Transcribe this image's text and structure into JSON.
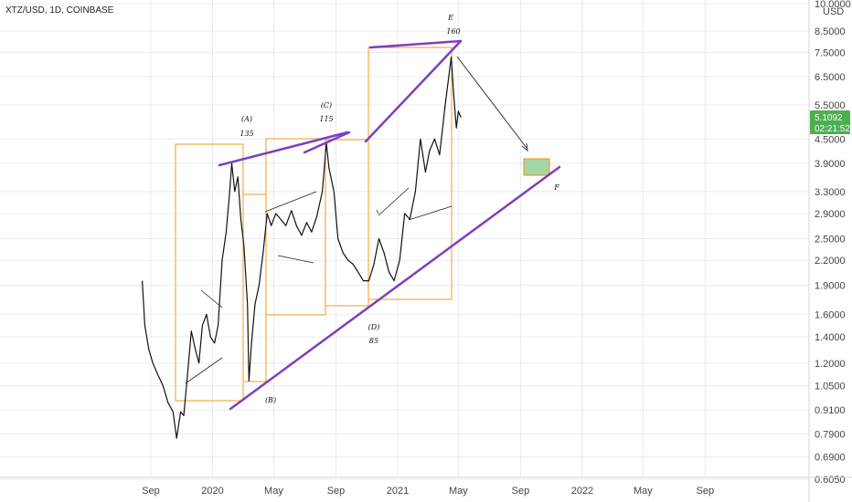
{
  "header": {
    "symbol": "XTZ/USD, 1D, COINBASE"
  },
  "price_badge": {
    "price": "5.1092",
    "countdown": "02:21:52",
    "color": "#4caf50"
  },
  "colors": {
    "candle": "#111111",
    "channel": "#7e3fbf",
    "box": "#f59a23",
    "target_fill": "#a5d6a7",
    "grid": "#e9ecf1"
  },
  "chart_data": {
    "type": "line",
    "title": "",
    "xlabel": "",
    "ylabel": "USD",
    "y_scale": "log",
    "y_ticks": [
      "10.0000",
      "8.5000",
      "7.5000",
      "6.5000",
      "5.5000",
      "4.5000",
      "3.9000",
      "3.3000",
      "2.9000",
      "2.5000",
      "2.2000",
      "1.9000",
      "1.6000",
      "1.4000",
      "1.2000",
      "1.0500",
      "0.9100",
      "0.7900",
      "0.6900",
      "0.6050"
    ],
    "x_ticks": [
      "Sep",
      "2020",
      "May",
      "Sep",
      "2021",
      "May",
      "Sep",
      "2022",
      "May",
      "Sep"
    ],
    "ylim": [
      0.6,
      10.5
    ],
    "series": [
      {
        "values": [
          [
            "2019-08-15",
            1.95
          ],
          [
            "2019-08-20",
            1.5
          ],
          [
            "2019-08-28",
            1.3
          ],
          [
            "2019-09-05",
            1.2
          ],
          [
            "2019-09-15",
            1.12
          ],
          [
            "2019-09-25",
            1.05
          ],
          [
            "2019-10-05",
            0.95
          ],
          [
            "2019-10-15",
            0.9
          ],
          [
            "2019-10-22",
            0.77
          ],
          [
            "2019-10-30",
            0.9
          ],
          [
            "2019-11-05",
            0.88
          ],
          [
            "2019-11-12",
            1.1
          ],
          [
            "2019-11-20",
            1.45
          ],
          [
            "2019-11-28",
            1.3
          ],
          [
            "2019-12-05",
            1.2
          ],
          [
            "2019-12-12",
            1.5
          ],
          [
            "2019-12-20",
            1.6
          ],
          [
            "2019-12-28",
            1.4
          ],
          [
            "2020-01-05",
            1.35
          ],
          [
            "2020-01-12",
            1.5
          ],
          [
            "2020-01-20",
            2.2
          ],
          [
            "2020-01-28",
            2.6
          ],
          [
            "2020-02-03",
            3.2
          ],
          [
            "2020-02-08",
            3.9
          ],
          [
            "2020-02-14",
            3.3
          ],
          [
            "2020-02-20",
            3.6
          ],
          [
            "2020-02-26",
            2.8
          ],
          [
            "2020-03-03",
            2.4
          ],
          [
            "2020-03-10",
            1.7
          ],
          [
            "2020-03-13",
            1.08
          ],
          [
            "2020-03-18",
            1.35
          ],
          [
            "2020-03-25",
            1.7
          ],
          [
            "2020-04-02",
            1.9
          ],
          [
            "2020-04-10",
            2.3
          ],
          [
            "2020-04-18",
            2.9
          ],
          [
            "2020-04-26",
            2.7
          ],
          [
            "2020-05-05",
            2.9
          ],
          [
            "2020-05-15",
            2.8
          ],
          [
            "2020-05-25",
            2.7
          ],
          [
            "2020-06-05",
            2.95
          ],
          [
            "2020-06-15",
            2.7
          ],
          [
            "2020-06-25",
            2.55
          ],
          [
            "2020-07-05",
            2.75
          ],
          [
            "2020-07-15",
            2.6
          ],
          [
            "2020-07-25",
            2.85
          ],
          [
            "2020-08-05",
            3.3
          ],
          [
            "2020-08-13",
            4.4
          ],
          [
            "2020-08-18",
            3.8
          ],
          [
            "2020-08-28",
            3.3
          ],
          [
            "2020-09-05",
            2.5
          ],
          [
            "2020-09-15",
            2.3
          ],
          [
            "2020-09-25",
            2.2
          ],
          [
            "2020-10-05",
            2.15
          ],
          [
            "2020-10-15",
            2.05
          ],
          [
            "2020-10-25",
            1.95
          ],
          [
            "2020-11-05",
            1.95
          ],
          [
            "2020-11-15",
            2.15
          ],
          [
            "2020-11-25",
            2.5
          ],
          [
            "2020-12-05",
            2.3
          ],
          [
            "2020-12-15",
            2.05
          ],
          [
            "2020-12-25",
            1.95
          ],
          [
            "2021-01-05",
            2.2
          ],
          [
            "2021-01-15",
            2.9
          ],
          [
            "2021-01-25",
            2.8
          ],
          [
            "2021-02-05",
            3.3
          ],
          [
            "2021-02-15",
            4.5
          ],
          [
            "2021-02-25",
            3.7
          ],
          [
            "2021-03-05",
            4.2
          ],
          [
            "2021-03-15",
            4.5
          ],
          [
            "2021-03-25",
            4.1
          ],
          [
            "2021-04-05",
            5.5
          ],
          [
            "2021-04-12",
            6.5
          ],
          [
            "2021-04-17",
            7.3
          ],
          [
            "2021-04-22",
            5.8
          ],
          [
            "2021-04-27",
            4.8
          ],
          [
            "2021-05-01",
            5.3
          ],
          [
            "2021-05-06",
            5.11
          ]
        ]
      }
    ],
    "annotations": [
      {
        "text": "(A)",
        "sub": "135"
      },
      {
        "text": "(B)",
        "sub": ""
      },
      {
        "text": "(C)",
        "sub": "115"
      },
      {
        "text": "(D)",
        "sub": "85"
      },
      {
        "text": "E",
        "sub": "160"
      },
      {
        "text": "F",
        "sub": ""
      }
    ]
  }
}
